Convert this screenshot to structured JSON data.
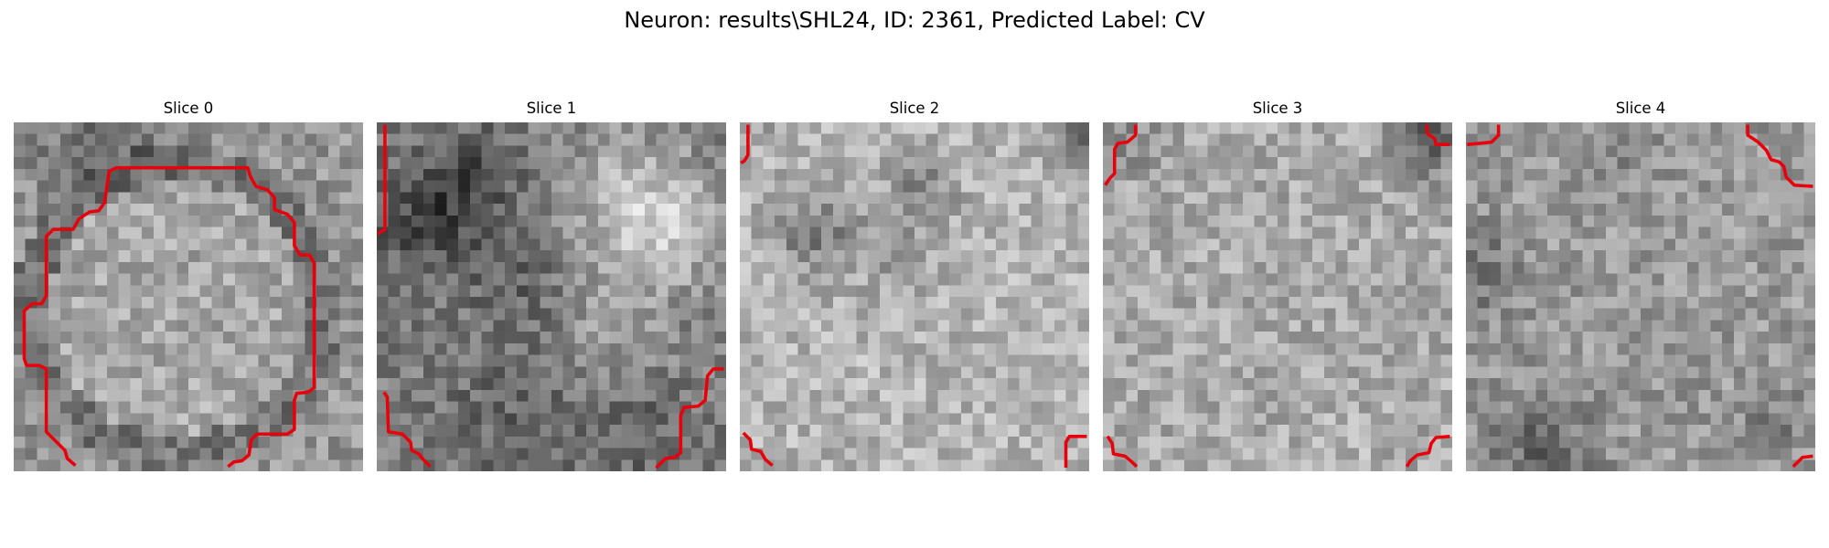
{
  "figure": {
    "title": "Neuron: results\\SHL24, ID: 2361, Predicted Label: CV"
  },
  "panels": [
    {
      "title": "Slice 0"
    },
    {
      "title": "Slice 1"
    },
    {
      "title": "Slice 2"
    },
    {
      "title": "Slice 3"
    },
    {
      "title": "Slice 4"
    }
  ],
  "colors": {
    "contour": "#e8000b",
    "background": "#ffffff"
  }
}
